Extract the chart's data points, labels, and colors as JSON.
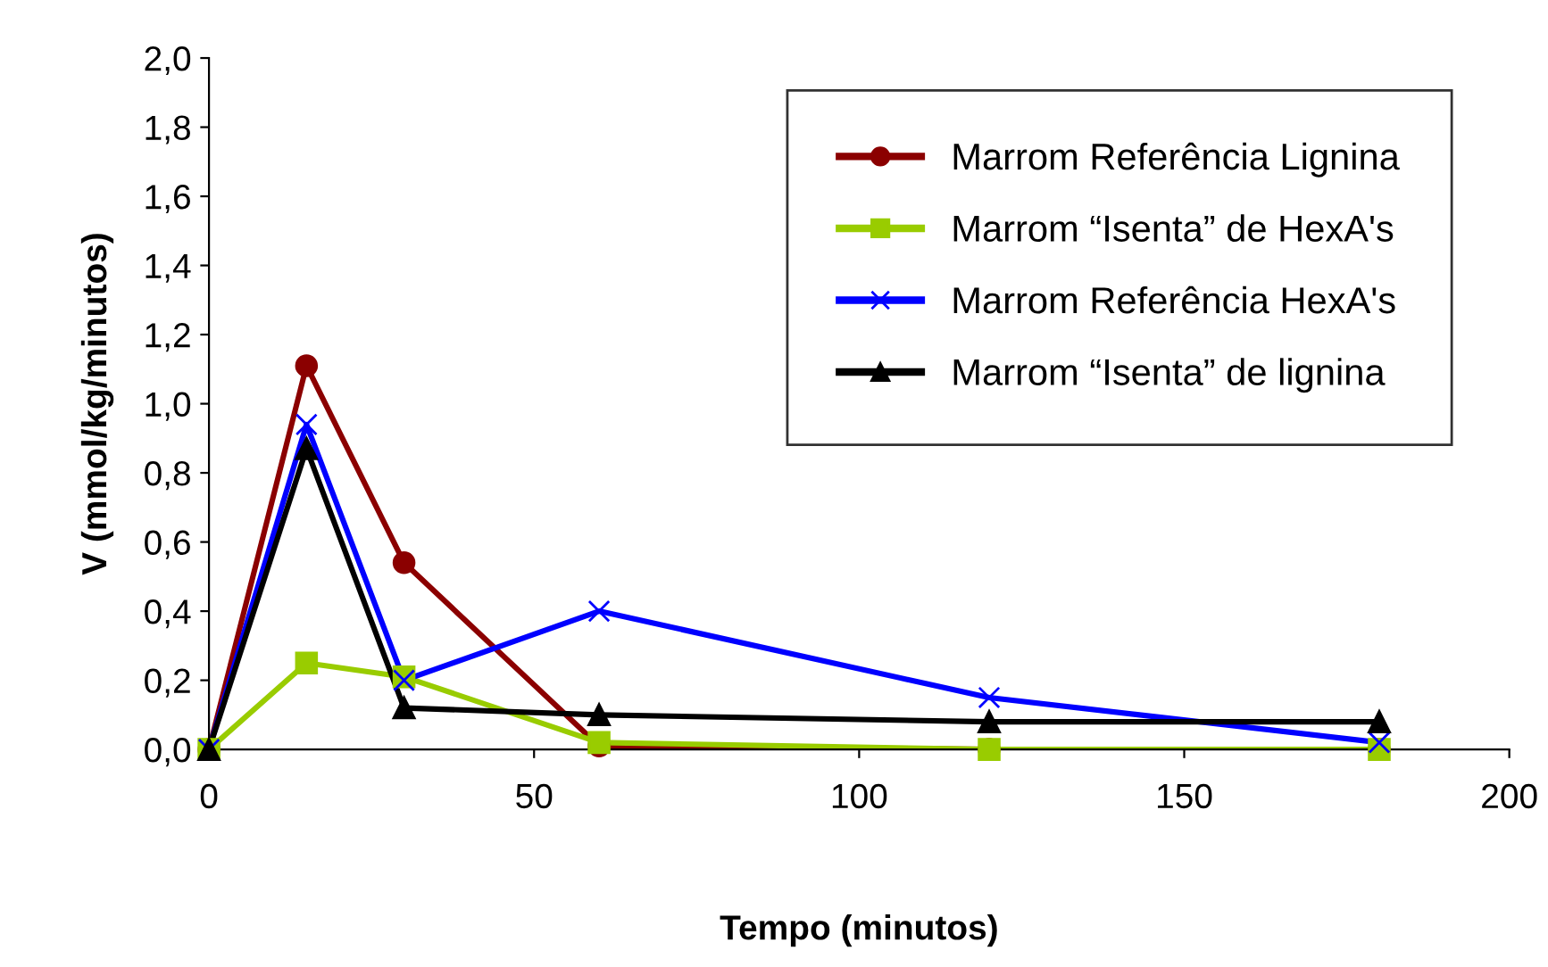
{
  "chart_data": {
    "type": "line",
    "xlabel": "Tempo (minutos)",
    "ylabel": "V (mmol/kg/minutos)",
    "x": [
      0,
      15,
      30,
      60,
      120,
      180
    ],
    "series": [
      {
        "name": "Marrom Referência Lignina",
        "color": "#8b0000",
        "marker": "circle",
        "values": [
          0,
          1.11,
          0.54,
          0.01,
          0.0,
          0.0
        ]
      },
      {
        "name": "Marrom “Isenta” de HexA's",
        "color": "#99cc00",
        "marker": "square",
        "values": [
          0,
          0.25,
          0.21,
          0.02,
          0.0,
          0.0
        ]
      },
      {
        "name": "Marrom Referência HexA's",
        "color": "#0000ff",
        "marker": "cross",
        "values": [
          0,
          0.94,
          0.2,
          0.4,
          0.15,
          0.02
        ]
      },
      {
        "name": "Marrom “Isenta” de lignina",
        "color": "#000000",
        "marker": "triangle",
        "values": [
          0,
          0.87,
          0.12,
          0.1,
          0.08,
          0.08
        ]
      }
    ],
    "xlim": [
      0,
      200
    ],
    "xticks": [
      0,
      50,
      100,
      150,
      200
    ],
    "ylim": [
      0,
      2.0
    ],
    "yticks": [
      {
        "value": 0,
        "label": "0,0"
      },
      {
        "value": 0.2,
        "label": "0,2"
      },
      {
        "value": 0.4,
        "label": "0,4"
      },
      {
        "value": 0.6,
        "label": "0,6"
      },
      {
        "value": 0.8,
        "label": "0,8"
      },
      {
        "value": 1.0,
        "label": "1,0"
      },
      {
        "value": 1.2,
        "label": "1,2"
      },
      {
        "value": 1.4,
        "label": "1,4"
      },
      {
        "value": 1.6,
        "label": "1,6"
      },
      {
        "value": 1.8,
        "label": "1,8"
      },
      {
        "value": 2.0,
        "label": "2,0"
      }
    ],
    "grid": false,
    "legend": "top right",
    "line_style": "solid"
  }
}
